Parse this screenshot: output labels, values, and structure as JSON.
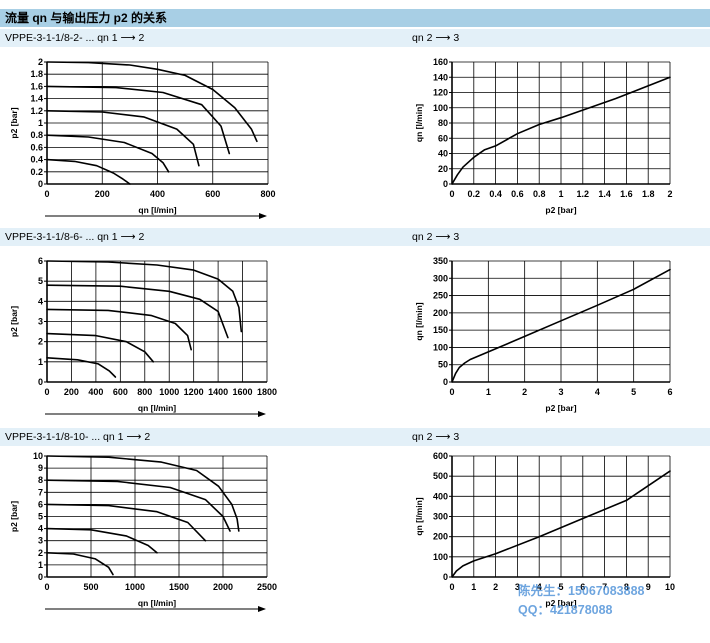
{
  "page": {
    "title": "流量 qn 与输出压力 p2 的关系",
    "watermark": {
      "name_line": "陈先生：15067083888",
      "qq_line": "QQ：421878088"
    }
  },
  "sections": [
    {
      "left_label": "VPPE-3-1-1/8-2- ... qn 1 ⟶ 2",
      "right_label": "qn 2 ⟶ 3"
    },
    {
      "left_label": "VPPE-3-1-1/8-6- ... qn 1 ⟶ 2",
      "right_label": "qn 2 ⟶ 3"
    },
    {
      "left_label": "VPPE-3-1-1/8-10- ... qn 1 ⟶ 2",
      "right_label": "qn 2 ⟶ 3"
    }
  ],
  "chart_data": [
    {
      "id": "chart-a",
      "type": "line",
      "xlabel": "qn [l/min]",
      "ylabel": "p2 [bar]",
      "xlim": [
        0,
        800
      ],
      "ylim": [
        0,
        2
      ],
      "xticks": [
        "0",
        "200",
        "400",
        "600",
        "800"
      ],
      "yticks": [
        "0",
        "0.2",
        "0.4",
        "0.6",
        "0.8",
        "1",
        "1.2",
        "1.4",
        "1.6",
        "1.8",
        "2"
      ],
      "grid": true,
      "x_arrow": true,
      "series": [
        {
          "x": [
            0,
            100,
            180,
            240,
            275,
            300
          ],
          "y": [
            0.4,
            0.37,
            0.3,
            0.18,
            0.08,
            0.0
          ]
        },
        {
          "x": [
            0,
            150,
            280,
            380,
            420,
            440
          ],
          "y": [
            0.8,
            0.77,
            0.68,
            0.5,
            0.35,
            0.2
          ]
        },
        {
          "x": [
            0,
            200,
            350,
            470,
            530,
            550
          ],
          "y": [
            1.2,
            1.18,
            1.1,
            0.9,
            0.65,
            0.3
          ]
        },
        {
          "x": [
            0,
            250,
            420,
            560,
            630,
            660
          ],
          "y": [
            1.6,
            1.58,
            1.5,
            1.3,
            0.95,
            0.5
          ]
        },
        {
          "x": [
            0,
            150,
            300,
            400,
            500,
            600,
            680,
            740,
            760
          ],
          "y": [
            2.0,
            1.99,
            1.95,
            1.88,
            1.78,
            1.55,
            1.25,
            0.9,
            0.7
          ]
        }
      ]
    },
    {
      "id": "chart-b",
      "type": "line",
      "xlabel": "p2 [bar]",
      "ylabel": "qn [l/min]",
      "xlim": [
        0,
        2
      ],
      "ylim": [
        0,
        160
      ],
      "xticks": [
        "0",
        "0.2",
        "0.4",
        "0.6",
        "0.8",
        "1",
        "1.2",
        "1.4",
        "1.6",
        "1.8",
        "2"
      ],
      "yticks": [
        "0",
        "20",
        "40",
        "60",
        "80",
        "100",
        "120",
        "140",
        "160"
      ],
      "grid": true,
      "x_arrow": false,
      "series": [
        {
          "x": [
            0,
            0.05,
            0.1,
            0.2,
            0.3,
            0.4,
            0.6,
            0.8,
            1.0,
            1.5,
            2.0
          ],
          "y": [
            0,
            12,
            22,
            35,
            45,
            50,
            66,
            78,
            87,
            112,
            140
          ]
        }
      ]
    },
    {
      "id": "chart-c",
      "type": "line",
      "xlabel": "qn [l/min]",
      "ylabel": "p2 [bar]",
      "xlim": [
        0,
        1800
      ],
      "ylim": [
        0,
        6
      ],
      "xticks": [
        "0",
        "200",
        "400",
        "600",
        "800",
        "1000",
        "1200",
        "1400",
        "1600",
        "1800"
      ],
      "yticks": [
        "0",
        "1",
        "2",
        "3",
        "4",
        "5",
        "6"
      ],
      "grid": true,
      "x_arrow": true,
      "series": [
        {
          "x": [
            0,
            250,
            420,
            510,
            560
          ],
          "y": [
            1.2,
            1.1,
            0.9,
            0.55,
            0.25
          ]
        },
        {
          "x": [
            0,
            400,
            650,
            800,
            870
          ],
          "y": [
            2.4,
            2.3,
            2.0,
            1.5,
            1.0
          ]
        },
        {
          "x": [
            0,
            500,
            850,
            1050,
            1150,
            1180
          ],
          "y": [
            3.6,
            3.55,
            3.3,
            2.9,
            2.3,
            1.6
          ]
        },
        {
          "x": [
            0,
            600,
            1000,
            1250,
            1400,
            1480
          ],
          "y": [
            4.8,
            4.75,
            4.5,
            4.1,
            3.5,
            2.2
          ]
        },
        {
          "x": [
            0,
            500,
            900,
            1200,
            1400,
            1520,
            1570,
            1590
          ],
          "y": [
            6.0,
            5.95,
            5.8,
            5.55,
            5.1,
            4.5,
            3.7,
            2.5
          ]
        }
      ]
    },
    {
      "id": "chart-d",
      "type": "line",
      "xlabel": "p2 [bar]",
      "ylabel": "qn [l/min]",
      "xlim": [
        0,
        6
      ],
      "ylim": [
        0,
        350
      ],
      "xticks": [
        "0",
        "1",
        "2",
        "3",
        "4",
        "5",
        "6"
      ],
      "yticks": [
        "0",
        "50",
        "100",
        "150",
        "200",
        "250",
        "300",
        "350"
      ],
      "grid": true,
      "x_arrow": false,
      "series": [
        {
          "x": [
            0,
            0.1,
            0.2,
            0.35,
            0.5,
            1.0,
            2.0,
            3.0,
            4.0,
            5.0,
            6.0
          ],
          "y": [
            0,
            25,
            42,
            55,
            65,
            87,
            132,
            177,
            222,
            268,
            325
          ]
        }
      ]
    },
    {
      "id": "chart-e",
      "type": "line",
      "xlabel": "qn [l/min]",
      "ylabel": "p2 [bar]",
      "xlim": [
        0,
        2500
      ],
      "ylim": [
        0,
        10
      ],
      "xticks": [
        "0",
        "500",
        "1000",
        "1500",
        "2000",
        "2500"
      ],
      "yticks": [
        "0",
        "1",
        "2",
        "3",
        "4",
        "5",
        "6",
        "7",
        "8",
        "9",
        "10"
      ],
      "grid": true,
      "x_arrow": true,
      "series": [
        {
          "x": [
            0,
            300,
            550,
            700,
            750
          ],
          "y": [
            2.0,
            1.9,
            1.5,
            0.8,
            0.2
          ]
        },
        {
          "x": [
            0,
            500,
            900,
            1150,
            1250
          ],
          "y": [
            4.0,
            3.9,
            3.4,
            2.6,
            2.0
          ]
        },
        {
          "x": [
            0,
            700,
            1250,
            1600,
            1800
          ],
          "y": [
            6.0,
            5.9,
            5.4,
            4.5,
            3.0
          ]
        },
        {
          "x": [
            0,
            800,
            1400,
            1800,
            2000,
            2080
          ],
          "y": [
            8.0,
            7.9,
            7.4,
            6.4,
            5.0,
            3.8
          ]
        },
        {
          "x": [
            0,
            700,
            1300,
            1700,
            1950,
            2100,
            2160,
            2180
          ],
          "y": [
            10.0,
            9.9,
            9.5,
            8.8,
            7.5,
            6.0,
            4.8,
            3.8
          ]
        }
      ]
    },
    {
      "id": "chart-f",
      "type": "line",
      "xlabel": "p2 [bar]",
      "ylabel": "qn [l/min]",
      "xlim": [
        0,
        10
      ],
      "ylim": [
        0,
        600
      ],
      "xticks": [
        "0",
        "1",
        "2",
        "3",
        "4",
        "5",
        "6",
        "7",
        "8",
        "9",
        "10"
      ],
      "yticks": [
        "0",
        "100",
        "200",
        "300",
        "400",
        "500",
        "600"
      ],
      "grid": true,
      "x_arrow": false,
      "series": [
        {
          "x": [
            0,
            0.2,
            0.5,
            1.0,
            2.0,
            4.0,
            6.0,
            8.0,
            10.0
          ],
          "y": [
            0,
            30,
            55,
            80,
            115,
            200,
            290,
            380,
            525
          ]
        }
      ]
    }
  ]
}
